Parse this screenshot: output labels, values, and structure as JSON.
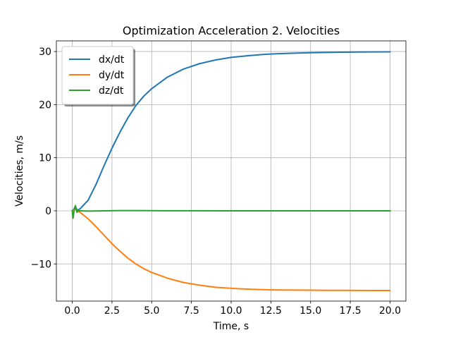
{
  "chart_data": {
    "type": "line",
    "title": "Optimization Acceleration 2. Velocities",
    "xlabel": "Time, s",
    "ylabel": "Velocities, m/s",
    "xlim": [
      -1.0,
      21.0
    ],
    "ylim": [
      -17.0,
      32.0
    ],
    "xticks": [
      0.0,
      2.5,
      5.0,
      7.5,
      10.0,
      12.5,
      15.0,
      17.5,
      20.0
    ],
    "xtick_labels": [
      "0.0",
      "2.5",
      "5.0",
      "7.5",
      "10.0",
      "12.5",
      "15.0",
      "17.5",
      "20.0"
    ],
    "yticks": [
      -10,
      0,
      10,
      20,
      30
    ],
    "ytick_labels": [
      "−10",
      "0",
      "10",
      "20",
      "30"
    ],
    "grid": true,
    "legend_position": "top-left",
    "series": [
      {
        "name": "dx/dt",
        "color": "#1f77b4",
        "x": [
          0.0,
          0.1,
          0.2,
          0.3,
          0.5,
          1.0,
          1.5,
          2.0,
          2.5,
          3.0,
          3.5,
          4.0,
          4.5,
          5.0,
          6.0,
          7.0,
          8.0,
          9.0,
          10.0,
          11.0,
          12.0,
          13.0,
          14.0,
          15.0,
          16.0,
          17.0,
          18.0,
          19.0,
          20.0
        ],
        "y": [
          0.0,
          0.3,
          0.9,
          0.1,
          0.4,
          2.0,
          5.0,
          8.5,
          11.8,
          14.8,
          17.5,
          19.8,
          21.6,
          23.0,
          25.2,
          26.7,
          27.7,
          28.4,
          28.9,
          29.2,
          29.45,
          29.6,
          29.7,
          29.78,
          29.83,
          29.87,
          29.9,
          29.92,
          29.94
        ]
      },
      {
        "name": "dy/dt",
        "color": "#ff7f0e",
        "x": [
          0.0,
          0.1,
          0.2,
          0.3,
          0.5,
          1.0,
          1.5,
          2.0,
          2.5,
          3.0,
          3.5,
          4.0,
          4.5,
          5.0,
          6.0,
          7.0,
          8.0,
          9.0,
          10.0,
          11.0,
          12.0,
          13.0,
          14.0,
          15.0,
          16.0,
          17.0,
          18.0,
          19.0,
          20.0
        ],
        "y": [
          0.0,
          0.2,
          0.4,
          0.0,
          -0.3,
          -1.5,
          -3.0,
          -4.6,
          -6.2,
          -7.6,
          -8.9,
          -10.0,
          -10.9,
          -11.6,
          -12.7,
          -13.5,
          -14.0,
          -14.4,
          -14.6,
          -14.75,
          -14.85,
          -14.9,
          -14.93,
          -14.95,
          -14.97,
          -14.98,
          -14.99,
          -15.0,
          -15.0
        ]
      },
      {
        "name": "dz/dt",
        "color": "#2ca02c",
        "x": [
          0.0,
          0.05,
          0.1,
          0.15,
          0.2,
          0.25,
          0.3,
          0.35,
          0.4,
          0.5,
          1.0,
          2.0,
          3.0,
          4.0,
          5.0,
          6.0,
          8.0,
          10.0,
          12.0,
          14.0,
          16.0,
          18.0,
          20.0
        ],
        "y": [
          0.0,
          -1.4,
          -0.2,
          0.5,
          1.0,
          0.2,
          -0.3,
          0.1,
          0.0,
          0.0,
          -0.05,
          0.0,
          0.05,
          0.05,
          0.03,
          0.02,
          0.01,
          0.0,
          0.0,
          0.0,
          0.0,
          0.0,
          0.0
        ]
      }
    ]
  }
}
